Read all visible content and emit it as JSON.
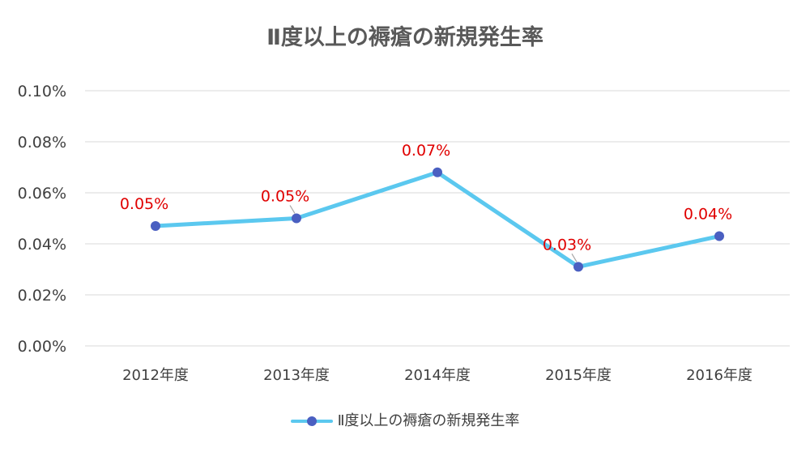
{
  "chart_data": {
    "type": "line",
    "title": "Ⅱ度以上の褥瘡の新規発生率",
    "categories": [
      "2012年度",
      "2013年度",
      "2014年度",
      "2015年度",
      "2016年度"
    ],
    "series": [
      {
        "name": "Ⅱ度以上の褥瘡の新規発生率",
        "values": [
          0.047,
          0.05,
          0.068,
          0.031,
          0.043
        ],
        "data_labels": [
          "0.05%",
          "0.05%",
          "0.07%",
          "0.03%",
          "0.04%"
        ]
      }
    ],
    "y_ticks": [
      "0.00%",
      "0.02%",
      "0.04%",
      "0.06%",
      "0.08%",
      "0.10%"
    ],
    "ylim": [
      0,
      0.1
    ],
    "y_unit": "%",
    "grid": true,
    "legend_position": "bottom",
    "colors": {
      "line": "#5bc8ef",
      "marker": "#4a5fc1",
      "data_label": "#e00000",
      "grid": "#d9d9d9"
    }
  }
}
